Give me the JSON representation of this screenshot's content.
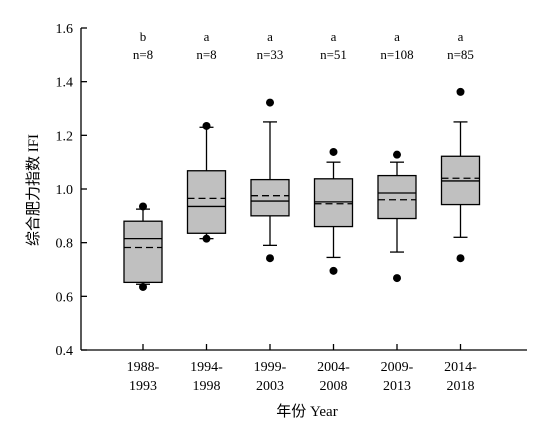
{
  "chart_data": {
    "type": "box",
    "xlabel": "年份 Year",
    "ylabel": "综合肥力指数 IFI",
    "ylim": [
      0.4,
      1.6
    ],
    "yticks": [
      "0.4",
      "0.6",
      "0.8",
      "1.0",
      "1.2",
      "1.4",
      "1.6"
    ],
    "categories": [
      [
        "1988-",
        "1993"
      ],
      [
        "1994-",
        "1998"
      ],
      [
        "1999-",
        "2003"
      ],
      [
        "2004-",
        "2008"
      ],
      [
        "2009-",
        "2013"
      ],
      [
        "2014-",
        "2018"
      ]
    ],
    "letters": [
      "b",
      "a",
      "a",
      "a",
      "a",
      "a"
    ],
    "counts": [
      "n=8",
      "n=8",
      "n=33",
      "n=51",
      "n=108",
      "n=85"
    ],
    "boxes": [
      {
        "whisker_low": 0.645,
        "q1": 0.652,
        "median": 0.815,
        "mean": 0.782,
        "q3": 0.88,
        "whisker_high": 0.925,
        "outliers": [
          0.635,
          0.935
        ]
      },
      {
        "whisker_low": 0.815,
        "q1": 0.835,
        "median": 0.935,
        "mean": 0.965,
        "q3": 1.068,
        "whisker_high": 1.23,
        "outliers": [
          0.815,
          1.235
        ]
      },
      {
        "whisker_low": 0.79,
        "q1": 0.9,
        "median": 0.955,
        "mean": 0.975,
        "q3": 1.035,
        "whisker_high": 1.25,
        "outliers": [
          0.742,
          1.322
        ]
      },
      {
        "whisker_low": 0.745,
        "q1": 0.86,
        "median": 0.952,
        "mean": 0.945,
        "q3": 1.038,
        "whisker_high": 1.1,
        "outliers": [
          0.695,
          1.138
        ]
      },
      {
        "whisker_low": 0.765,
        "q1": 0.89,
        "median": 0.985,
        "mean": 0.96,
        "q3": 1.05,
        "whisker_high": 1.1,
        "outliers": [
          0.668,
          1.128
        ]
      },
      {
        "whisker_low": 0.82,
        "q1": 0.942,
        "median": 1.03,
        "mean": 1.04,
        "q3": 1.122,
        "whisker_high": 1.25,
        "outliers": [
          0.742,
          1.362
        ]
      }
    ],
    "colors": {
      "box_fill": "#c0c0c0",
      "stroke": "#000000"
    }
  }
}
